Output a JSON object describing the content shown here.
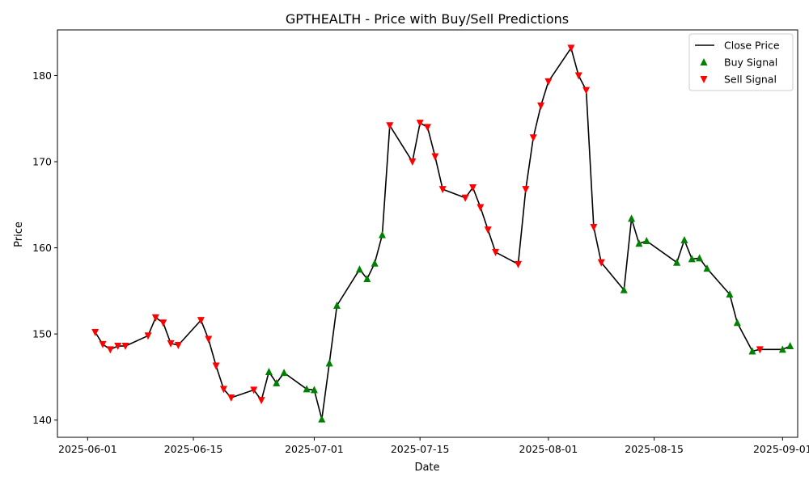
{
  "chart_data": {
    "type": "line",
    "title": "GPTHEALTH - Price with Buy/Sell Predictions",
    "xlabel": "Date",
    "ylabel": "Price",
    "xlim": [
      "2025-05-28",
      "2025-09-03"
    ],
    "ylim": [
      138.0,
      185.3
    ],
    "x_ticks": [
      "2025-06-01",
      "2025-06-15",
      "2025-07-01",
      "2025-07-15",
      "2025-08-01",
      "2025-08-15",
      "2025-09-01"
    ],
    "y_ticks": [
      140,
      150,
      160,
      170,
      180
    ],
    "grid": false,
    "legend_position": "top-right",
    "series": [
      {
        "name": "Close Price",
        "color": "#000000",
        "points": [
          [
            "2025-06-02",
            150.2
          ],
          [
            "2025-06-03",
            148.8
          ],
          [
            "2025-06-04",
            148.2
          ],
          [
            "2025-06-05",
            148.6
          ],
          [
            "2025-06-06",
            148.6
          ],
          [
            "2025-06-09",
            149.8
          ],
          [
            "2025-06-10",
            151.9
          ],
          [
            "2025-06-11",
            151.3
          ],
          [
            "2025-06-12",
            148.9
          ],
          [
            "2025-06-13",
            148.7
          ],
          [
            "2025-06-16",
            151.6
          ],
          [
            "2025-06-17",
            149.4
          ],
          [
            "2025-06-18",
            146.3
          ],
          [
            "2025-06-19",
            143.6
          ],
          [
            "2025-06-20",
            142.6
          ],
          [
            "2025-06-23",
            143.5
          ],
          [
            "2025-06-24",
            142.3
          ],
          [
            "2025-06-25",
            145.6
          ],
          [
            "2025-06-26",
            144.3
          ],
          [
            "2025-06-27",
            145.5
          ],
          [
            "2025-06-30",
            143.6
          ],
          [
            "2025-07-01",
            143.5
          ],
          [
            "2025-07-02",
            140.1
          ],
          [
            "2025-07-03",
            146.6
          ],
          [
            "2025-07-04",
            153.3
          ],
          [
            "2025-07-07",
            157.5
          ],
          [
            "2025-07-08",
            156.4
          ],
          [
            "2025-07-09",
            158.2
          ],
          [
            "2025-07-10",
            161.5
          ],
          [
            "2025-07-11",
            174.2
          ],
          [
            "2025-07-14",
            170.0
          ],
          [
            "2025-07-15",
            174.5
          ],
          [
            "2025-07-16",
            174.0
          ],
          [
            "2025-07-17",
            170.6
          ],
          [
            "2025-07-18",
            166.8
          ],
          [
            "2025-07-21",
            165.8
          ],
          [
            "2025-07-22",
            167.0
          ],
          [
            "2025-07-23",
            164.7
          ],
          [
            "2025-07-24",
            162.1
          ],
          [
            "2025-07-25",
            159.5
          ],
          [
            "2025-07-28",
            158.1
          ],
          [
            "2025-07-29",
            166.8
          ],
          [
            "2025-07-30",
            172.8
          ],
          [
            "2025-07-31",
            176.5
          ],
          [
            "2025-08-01",
            179.3
          ],
          [
            "2025-08-04",
            183.2
          ],
          [
            "2025-08-05",
            180.0
          ],
          [
            "2025-08-06",
            178.3
          ],
          [
            "2025-08-07",
            162.4
          ],
          [
            "2025-08-08",
            158.3
          ],
          [
            "2025-08-11",
            155.1
          ],
          [
            "2025-08-12",
            163.4
          ],
          [
            "2025-08-13",
            160.5
          ],
          [
            "2025-08-14",
            160.8
          ],
          [
            "2025-08-18",
            158.3
          ],
          [
            "2025-08-19",
            160.9
          ],
          [
            "2025-08-20",
            158.7
          ],
          [
            "2025-08-21",
            158.8
          ],
          [
            "2025-08-22",
            157.6
          ],
          [
            "2025-08-25",
            154.6
          ],
          [
            "2025-08-26",
            151.3
          ],
          [
            "2025-08-28",
            148.0
          ],
          [
            "2025-08-29",
            148.2
          ],
          [
            "2025-09-01",
            148.2
          ],
          [
            "2025-09-02",
            148.6
          ]
        ]
      },
      {
        "name": "Buy Signal",
        "color": "#008000",
        "marker": "triangle-up",
        "points": [
          [
            "2025-06-25",
            145.6
          ],
          [
            "2025-06-26",
            144.3
          ],
          [
            "2025-06-27",
            145.5
          ],
          [
            "2025-06-30",
            143.6
          ],
          [
            "2025-07-01",
            143.5
          ],
          [
            "2025-07-02",
            140.1
          ],
          [
            "2025-07-03",
            146.6
          ],
          [
            "2025-07-04",
            153.3
          ],
          [
            "2025-07-07",
            157.5
          ],
          [
            "2025-07-08",
            156.4
          ],
          [
            "2025-07-09",
            158.2
          ],
          [
            "2025-07-10",
            161.5
          ],
          [
            "2025-08-11",
            155.1
          ],
          [
            "2025-08-12",
            163.4
          ],
          [
            "2025-08-13",
            160.5
          ],
          [
            "2025-08-14",
            160.8
          ],
          [
            "2025-08-18",
            158.3
          ],
          [
            "2025-08-19",
            160.9
          ],
          [
            "2025-08-20",
            158.7
          ],
          [
            "2025-08-21",
            158.8
          ],
          [
            "2025-08-22",
            157.6
          ],
          [
            "2025-08-25",
            154.6
          ],
          [
            "2025-08-26",
            151.3
          ],
          [
            "2025-08-28",
            148.0
          ],
          [
            "2025-09-01",
            148.2
          ],
          [
            "2025-09-02",
            148.6
          ]
        ]
      },
      {
        "name": "Sell Signal",
        "color": "#ff0000",
        "marker": "triangle-down",
        "points": [
          [
            "2025-06-02",
            150.2
          ],
          [
            "2025-06-03",
            148.8
          ],
          [
            "2025-06-04",
            148.2
          ],
          [
            "2025-06-05",
            148.6
          ],
          [
            "2025-06-06",
            148.6
          ],
          [
            "2025-06-09",
            149.8
          ],
          [
            "2025-06-10",
            151.9
          ],
          [
            "2025-06-11",
            151.3
          ],
          [
            "2025-06-12",
            148.9
          ],
          [
            "2025-06-13",
            148.7
          ],
          [
            "2025-06-16",
            151.6
          ],
          [
            "2025-06-17",
            149.4
          ],
          [
            "2025-06-18",
            146.3
          ],
          [
            "2025-06-19",
            143.6
          ],
          [
            "2025-06-20",
            142.6
          ],
          [
            "2025-06-23",
            143.5
          ],
          [
            "2025-06-24",
            142.3
          ],
          [
            "2025-07-11",
            174.2
          ],
          [
            "2025-07-14",
            170.0
          ],
          [
            "2025-07-15",
            174.5
          ],
          [
            "2025-07-16",
            174.0
          ],
          [
            "2025-07-17",
            170.6
          ],
          [
            "2025-07-18",
            166.8
          ],
          [
            "2025-07-21",
            165.8
          ],
          [
            "2025-07-22",
            167.0
          ],
          [
            "2025-07-23",
            164.7
          ],
          [
            "2025-07-24",
            162.1
          ],
          [
            "2025-07-25",
            159.5
          ],
          [
            "2025-07-28",
            158.1
          ],
          [
            "2025-07-29",
            166.8
          ],
          [
            "2025-07-30",
            172.8
          ],
          [
            "2025-07-31",
            176.5
          ],
          [
            "2025-08-01",
            179.3
          ],
          [
            "2025-08-04",
            183.2
          ],
          [
            "2025-08-05",
            180.0
          ],
          [
            "2025-08-06",
            178.3
          ],
          [
            "2025-08-07",
            162.4
          ],
          [
            "2025-08-08",
            158.3
          ],
          [
            "2025-08-29",
            148.2
          ]
        ]
      }
    ]
  }
}
